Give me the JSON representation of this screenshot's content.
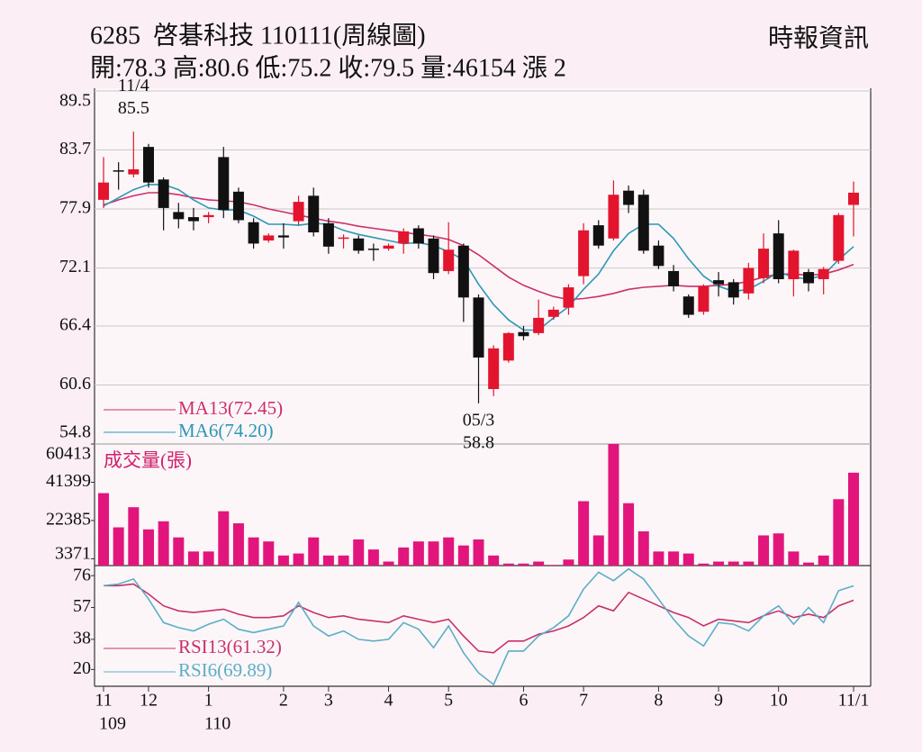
{
  "header": {
    "title": "6285  啓碁科技 110111(周線圖)",
    "source": "時報資訊",
    "summary": "開:78.3 高:80.6 低:75.2 收:79.5 量:46154 漲 2"
  },
  "chart_data": [
    {
      "type": "candlestick",
      "up_color": "#e3142d",
      "down_color": "#111111",
      "grid": true,
      "ylim": [
        54.8,
        89.5
      ],
      "yticks": [
        54.8,
        60.6,
        66.4,
        72.1,
        77.9,
        83.7,
        89.5
      ],
      "open": [
        78.8,
        81.7,
        81.3,
        84.0,
        80.8,
        77.6,
        77.1,
        77.1,
        83.0,
        79.6,
        76.6,
        74.8,
        75.3,
        76.7,
        79.2,
        76.5,
        75.0,
        75.0,
        74.0,
        74.0,
        74.5,
        76.0,
        75.0,
        71.8,
        74.3,
        69.2,
        60.2,
        63.0,
        65.8,
        65.7,
        67.3,
        68.2,
        71.3,
        76.3,
        75.0,
        79.7,
        79.3,
        74.3,
        71.8,
        69.3,
        67.8,
        70.9,
        70.7,
        69.6,
        71.1,
        75.5,
        71.0,
        71.7,
        71.0,
        72.8,
        78.3
      ],
      "high": [
        83.0,
        82.5,
        85.5,
        84.3,
        81.0,
        78.5,
        78.0,
        77.6,
        84.0,
        80.0,
        77.0,
        75.5,
        76.5,
        79.2,
        80.0,
        77.0,
        75.4,
        75.3,
        74.5,
        74.5,
        76.0,
        76.3,
        75.3,
        76.6,
        74.5,
        69.5,
        64.5,
        65.8,
        66.4,
        69.0,
        68.3,
        70.5,
        76.5,
        76.8,
        80.7,
        80.2,
        79.8,
        74.8,
        72.4,
        69.5,
        70.5,
        71.7,
        71.0,
        72.6,
        75.5,
        76.8,
        73.9,
        72.0,
        72.2,
        77.5,
        80.6
      ],
      "low": [
        78.0,
        79.8,
        81.0,
        80.0,
        75.8,
        76.0,
        75.8,
        76.5,
        77.0,
        76.5,
        74.0,
        74.6,
        74.0,
        76.3,
        75.2,
        73.5,
        74.0,
        73.5,
        72.8,
        73.8,
        73.5,
        74.0,
        71.0,
        71.5,
        66.8,
        58.8,
        59.5,
        62.8,
        65.0,
        65.5,
        67.0,
        67.5,
        70.5,
        74.0,
        74.8,
        77.5,
        73.5,
        72.0,
        69.8,
        67.2,
        67.5,
        69.3,
        68.5,
        69.0,
        70.6,
        70.6,
        69.3,
        69.8,
        69.5,
        72.5,
        75.2
      ],
      "close": [
        80.5,
        81.6,
        81.8,
        80.5,
        78.0,
        76.9,
        76.7,
        77.3,
        77.8,
        76.8,
        74.5,
        75.3,
        75.1,
        78.6,
        75.6,
        74.2,
        75.1,
        73.8,
        73.9,
        74.3,
        75.7,
        74.5,
        71.6,
        73.9,
        69.2,
        63.3,
        64.2,
        65.7,
        65.4,
        67.2,
        68.0,
        70.2,
        75.8,
        74.3,
        79.3,
        78.3,
        73.8,
        72.3,
        70.3,
        67.5,
        70.3,
        70.5,
        69.2,
        72.1,
        74.0,
        71.0,
        73.8,
        70.6,
        72.0,
        77.3,
        79.5
      ],
      "series": [
        {
          "name": "MA13(72.45)",
          "color": "#cc2f6a",
          "values": [
            78.3,
            78.8,
            79.2,
            79.5,
            79.5,
            79.3,
            79.0,
            78.8,
            78.7,
            78.6,
            78.3,
            77.9,
            77.6,
            77.3,
            77.0,
            76.7,
            76.5,
            76.2,
            76.0,
            75.8,
            75.6,
            75.4,
            75.2,
            74.9,
            74.3,
            73.4,
            72.3,
            71.2,
            70.4,
            69.8,
            69.3,
            69.0,
            69.1,
            69.3,
            69.6,
            70.0,
            70.2,
            70.3,
            70.4,
            70.3,
            70.3,
            70.4,
            70.5,
            70.8,
            71.2,
            71.5,
            71.5,
            71.4,
            71.5,
            71.9,
            72.45
          ]
        },
        {
          "name": "MA6(74.20)",
          "color": "#2b98b5",
          "values": [
            78.2,
            79.0,
            79.8,
            80.3,
            80.3,
            79.8,
            78.8,
            78.0,
            77.8,
            77.8,
            77.2,
            76.4,
            76.4,
            76.3,
            76.5,
            76.4,
            75.8,
            75.4,
            75.1,
            74.8,
            74.5,
            74.6,
            74.3,
            73.7,
            72.9,
            70.5,
            68.5,
            67.0,
            66.0,
            66.0,
            67.2,
            68.3,
            70.0,
            71.5,
            73.8,
            75.5,
            76.4,
            76.4,
            75.0,
            73.0,
            71.3,
            70.3,
            69.8,
            70.0,
            70.8,
            71.7,
            71.2,
            71.0,
            71.4,
            72.9,
            74.2
          ]
        }
      ],
      "annotations": [
        {
          "label": "11/4",
          "value": 85.5,
          "position": "above"
        },
        {
          "label": "05/3",
          "value": 58.8,
          "position": "below"
        }
      ]
    },
    {
      "type": "bar",
      "title": "成交量(張)",
      "color": "#e2157c",
      "ylim": [
        0,
        60413
      ],
      "yticks": [
        3371,
        22385,
        41399,
        60413
      ],
      "values": [
        36000,
        19000,
        29000,
        18000,
        22000,
        14000,
        7000,
        7000,
        27000,
        21000,
        14000,
        12000,
        5000,
        6000,
        14000,
        5000,
        5000,
        13000,
        8000,
        2000,
        9000,
        12000,
        12000,
        14000,
        10000,
        13000,
        5000,
        1000,
        1000,
        2000,
        300,
        3000,
        32000,
        15000,
        60413,
        31000,
        17000,
        7000,
        7000,
        6000,
        1000,
        2000,
        2000,
        2000,
        15000,
        16000,
        7000,
        1500,
        5000,
        33000,
        46154
      ]
    },
    {
      "type": "line",
      "ylim": [
        10,
        82
      ],
      "yticks": [
        20,
        38,
        57,
        76
      ],
      "categories": [
        "11",
        null,
        null,
        "12",
        null,
        null,
        null,
        "1",
        null,
        null,
        null,
        null,
        "2",
        null,
        null,
        "3",
        null,
        null,
        null,
        "4",
        null,
        null,
        null,
        "5",
        null,
        null,
        null,
        null,
        "6",
        null,
        null,
        null,
        "7",
        null,
        null,
        null,
        null,
        "8",
        null,
        null,
        null,
        "9",
        null,
        null,
        null,
        "10",
        null,
        null,
        null,
        null,
        "11/1"
      ],
      "sublabels": [
        "109",
        null,
        null,
        null,
        null,
        null,
        null,
        "110",
        null,
        null,
        null,
        null,
        null,
        null,
        null,
        null,
        null,
        null,
        null,
        null,
        null,
        null,
        null,
        null,
        null,
        null,
        null,
        null,
        null,
        null,
        null,
        null,
        null,
        null,
        null,
        null,
        null,
        null,
        null,
        null,
        null,
        null,
        null,
        null,
        null,
        null,
        null,
        null,
        null,
        null,
        null
      ],
      "series": [
        {
          "name": "RSI13(61.32)",
          "color": "#c8306a",
          "values": [
            70,
            70,
            71,
            65,
            58,
            55,
            54,
            55,
            56,
            53,
            51,
            51,
            52,
            58,
            54,
            51,
            52,
            50,
            49,
            48,
            52,
            50,
            48,
            50,
            40,
            31,
            30,
            37,
            37,
            41,
            43,
            46,
            51,
            58,
            55,
            66,
            62,
            58,
            54,
            51,
            46,
            50,
            49,
            48,
            52,
            55,
            51,
            53,
            51,
            58,
            61.32
          ]
        },
        {
          "name": "RSI6(69.89)",
          "color": "#5aaec6",
          "values": [
            70,
            71,
            74,
            62,
            48,
            45,
            43,
            47,
            50,
            44,
            42,
            44,
            46,
            60,
            46,
            40,
            43,
            38,
            37,
            38,
            48,
            44,
            33,
            46,
            30,
            18,
            11,
            31,
            31,
            40,
            45,
            52,
            68,
            78,
            73,
            80,
            74,
            62,
            50,
            40,
            34,
            48,
            47,
            43,
            52,
            58,
            47,
            57,
            48,
            67,
            69.89
          ]
        }
      ]
    }
  ]
}
